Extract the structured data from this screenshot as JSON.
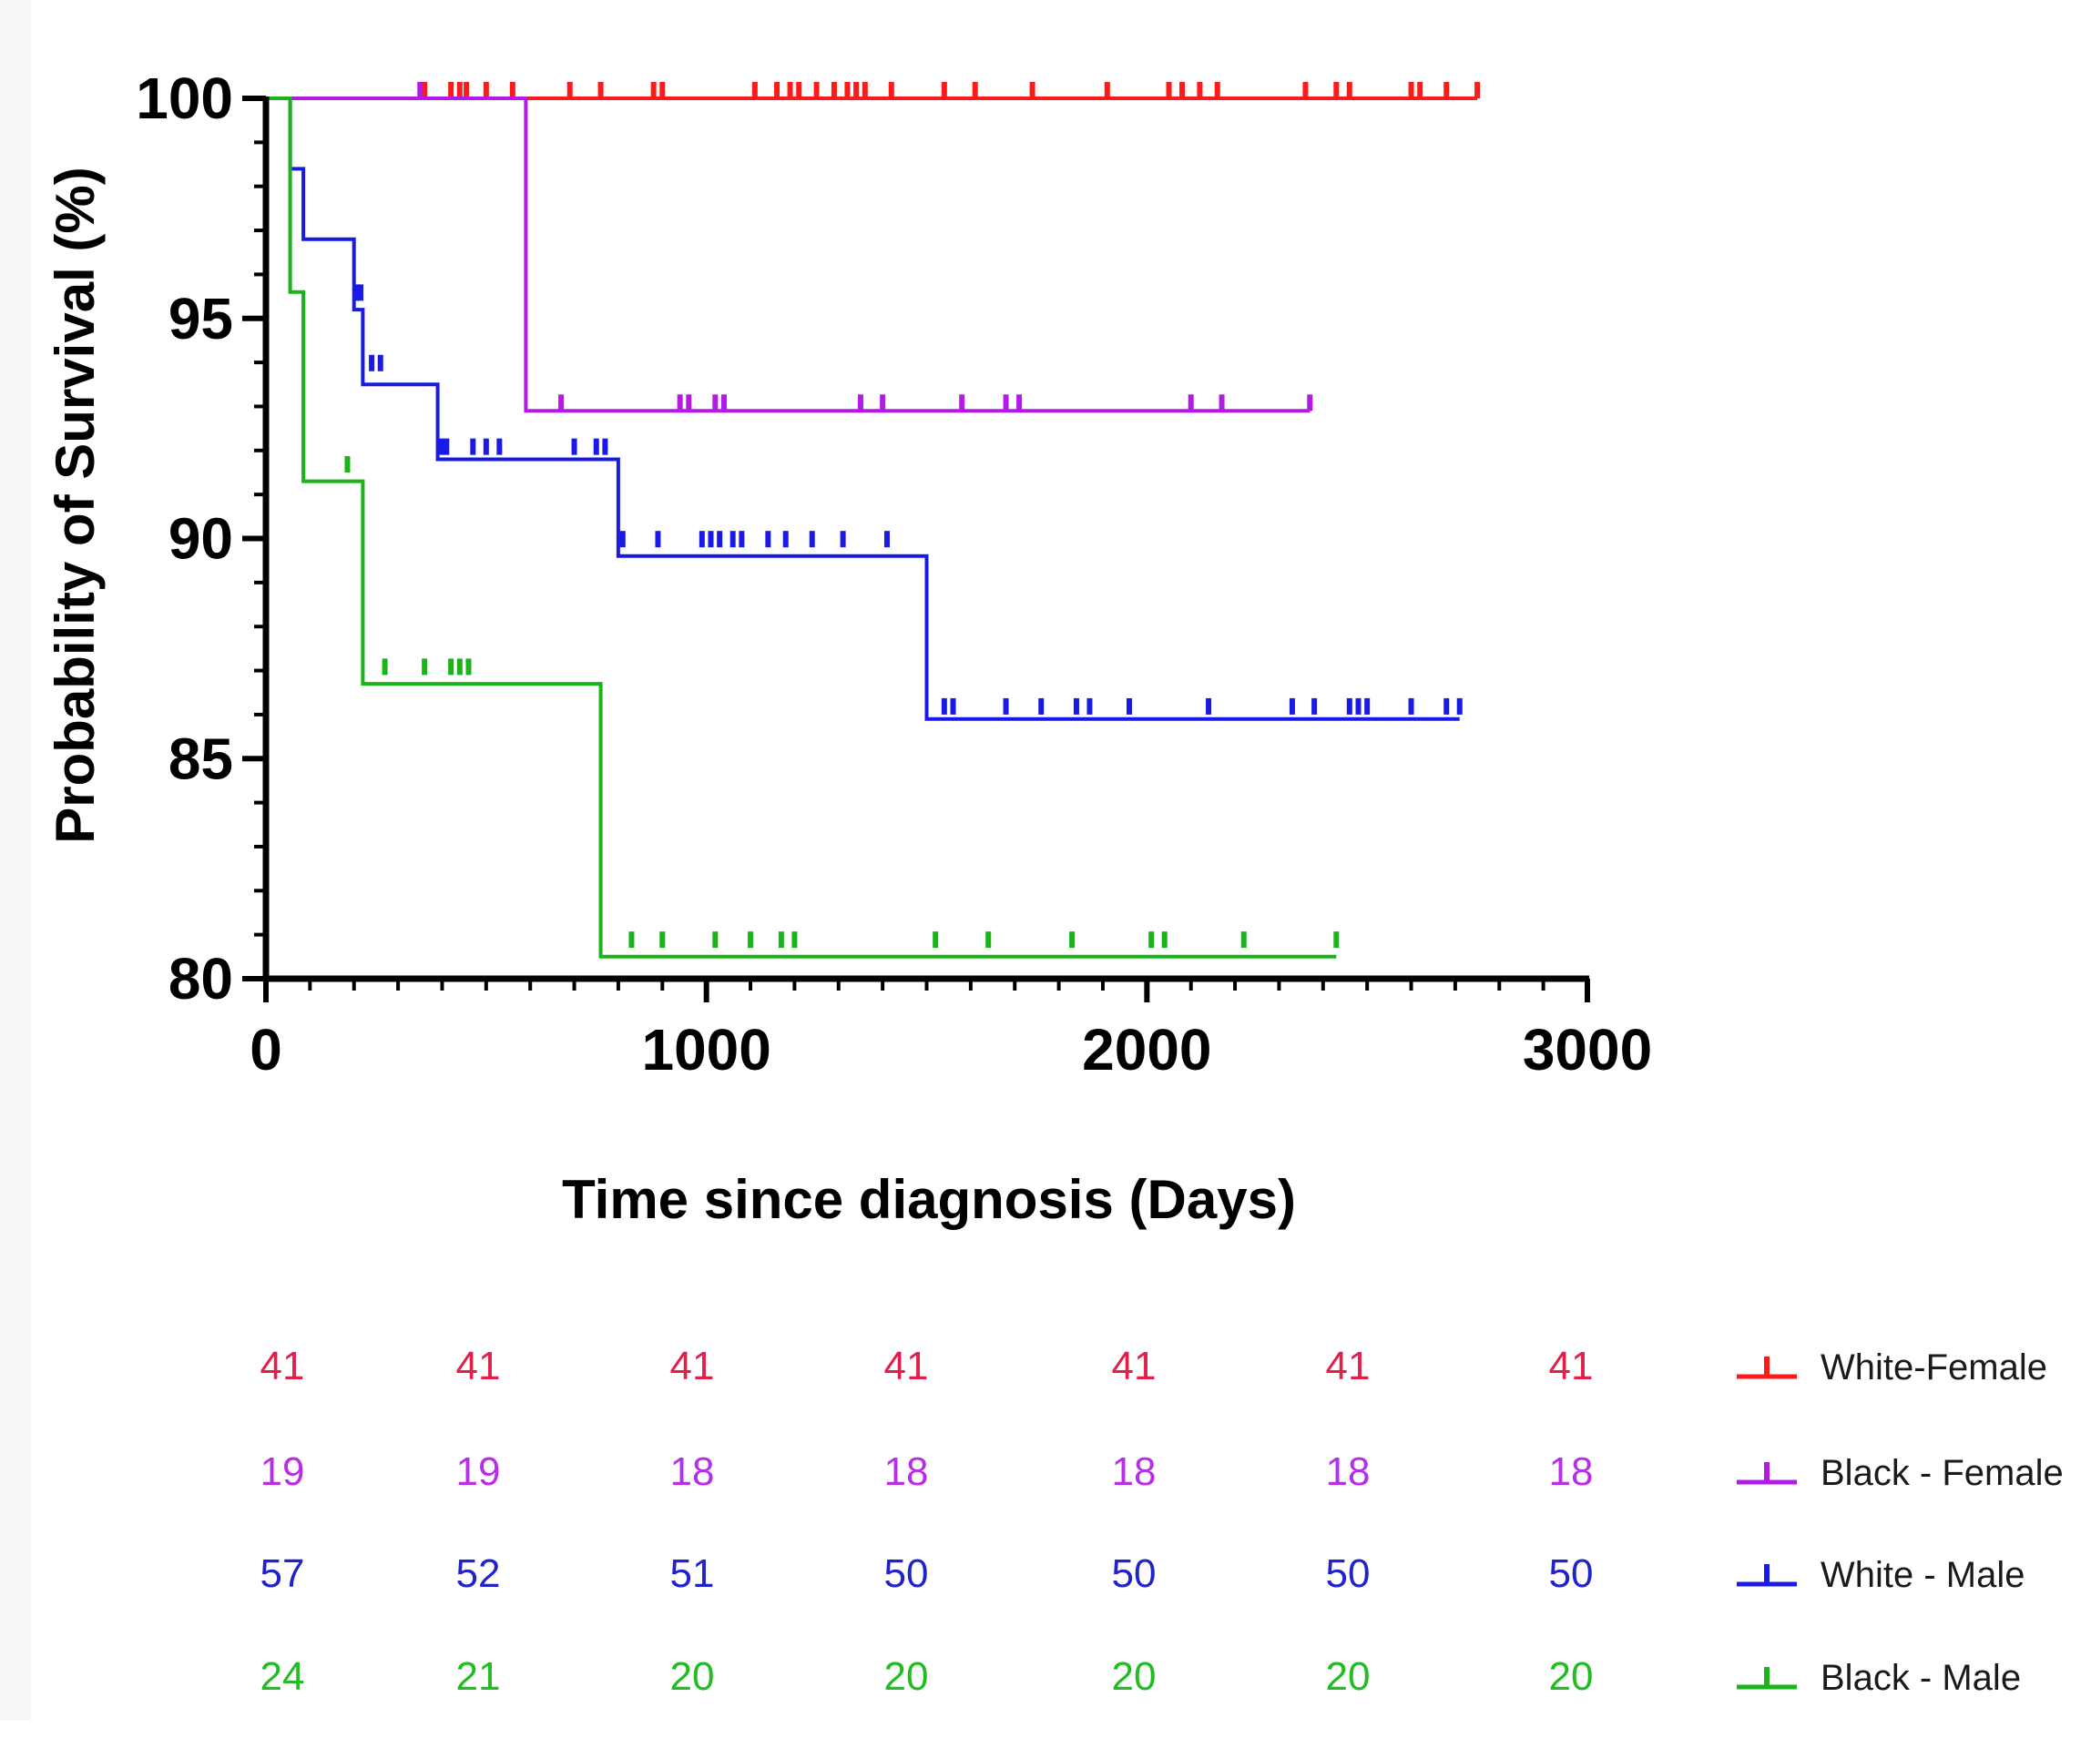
{
  "chart_data": {
    "type": "line",
    "subtype": "kaplan-meier",
    "title": "",
    "xlabel": "Time since diagnosis (Days)",
    "ylabel": "Probability of Survival (%)",
    "xlim": [
      0,
      3000
    ],
    "ylim": [
      80,
      100
    ],
    "xticks": [
      "0",
      "1000",
      "2000",
      "3000"
    ],
    "yticks": [
      "80",
      "85",
      "90",
      "95",
      "100"
    ],
    "grid": false,
    "legend_position": "right, beside risk table",
    "series": [
      {
        "name": "White-Female",
        "color": "#ff1a1a",
        "steps": [
          [
            0,
            100
          ],
          [
            2750,
            100
          ]
        ],
        "censored": [
          [
            360,
            100
          ],
          [
            420,
            100
          ],
          [
            440,
            100
          ],
          [
            455,
            100
          ],
          [
            500,
            100
          ],
          [
            560,
            100
          ],
          [
            690,
            100
          ],
          [
            760,
            100
          ],
          [
            880,
            100
          ],
          [
            900,
            100
          ],
          [
            1110,
            100
          ],
          [
            1160,
            100
          ],
          [
            1190,
            100
          ],
          [
            1210,
            100
          ],
          [
            1250,
            100
          ],
          [
            1290,
            100
          ],
          [
            1320,
            100
          ],
          [
            1340,
            100
          ],
          [
            1360,
            100
          ],
          [
            1420,
            100
          ],
          [
            1540,
            100
          ],
          [
            1610,
            100
          ],
          [
            1740,
            100
          ],
          [
            1910,
            100
          ],
          [
            2050,
            100
          ],
          [
            2080,
            100
          ],
          [
            2120,
            100
          ],
          [
            2160,
            100
          ],
          [
            2360,
            100
          ],
          [
            2430,
            100
          ],
          [
            2460,
            100
          ],
          [
            2600,
            100
          ],
          [
            2620,
            100
          ],
          [
            2680,
            100
          ],
          [
            2750,
            100
          ]
        ]
      },
      {
        "name": "Black - Female",
        "color": "#b31ae6",
        "steps": [
          [
            0,
            100
          ],
          [
            590,
            100
          ],
          [
            590,
            92.9
          ],
          [
            2370,
            92.9
          ]
        ],
        "censored": [
          [
            350,
            100
          ],
          [
            670,
            92.9
          ],
          [
            940,
            92.9
          ],
          [
            960,
            92.9
          ],
          [
            1020,
            92.9
          ],
          [
            1040,
            92.9
          ],
          [
            1350,
            92.9
          ],
          [
            1400,
            92.9
          ],
          [
            1580,
            92.9
          ],
          [
            1680,
            92.9
          ],
          [
            1710,
            92.9
          ],
          [
            2100,
            92.9
          ],
          [
            2170,
            92.9
          ],
          [
            2370,
            92.9
          ]
        ]
      },
      {
        "name": "White - Male",
        "color": "#1a1ae6",
        "steps": [
          [
            0,
            100
          ],
          [
            55,
            100
          ],
          [
            55,
            98.4
          ],
          [
            85,
            98.4
          ],
          [
            85,
            96.8
          ],
          [
            200,
            96.8
          ],
          [
            200,
            95.2
          ],
          [
            220,
            95.2
          ],
          [
            220,
            93.5
          ],
          [
            390,
            93.5
          ],
          [
            390,
            91.8
          ],
          [
            800,
            91.8
          ],
          [
            800,
            89.6
          ],
          [
            1500,
            89.6
          ],
          [
            1500,
            85.9
          ],
          [
            2710,
            85.9
          ]
        ],
        "censored": [
          [
            205,
            95.4
          ],
          [
            215,
            95.4
          ],
          [
            240,
            93.8
          ],
          [
            260,
            93.8
          ],
          [
            400,
            91.9
          ],
          [
            410,
            91.9
          ],
          [
            470,
            91.9
          ],
          [
            500,
            91.9
          ],
          [
            530,
            91.9
          ],
          [
            700,
            91.9
          ],
          [
            750,
            91.9
          ],
          [
            770,
            91.9
          ],
          [
            810,
            89.8
          ],
          [
            890,
            89.8
          ],
          [
            990,
            89.8
          ],
          [
            1010,
            89.8
          ],
          [
            1030,
            89.8
          ],
          [
            1060,
            89.8
          ],
          [
            1080,
            89.8
          ],
          [
            1140,
            89.8
          ],
          [
            1180,
            89.8
          ],
          [
            1240,
            89.8
          ],
          [
            1310,
            89.8
          ],
          [
            1410,
            89.8
          ],
          [
            1540,
            86.0
          ],
          [
            1560,
            86.0
          ],
          [
            1680,
            86.0
          ],
          [
            1760,
            86.0
          ],
          [
            1840,
            86.0
          ],
          [
            1870,
            86.0
          ],
          [
            1960,
            86.0
          ],
          [
            2140,
            86.0
          ],
          [
            2330,
            86.0
          ],
          [
            2380,
            86.0
          ],
          [
            2460,
            86.0
          ],
          [
            2480,
            86.0
          ],
          [
            2500,
            86.0
          ],
          [
            2600,
            86.0
          ],
          [
            2680,
            86.0
          ],
          [
            2710,
            86.0
          ]
        ]
      },
      {
        "name": "Black - Male",
        "color": "#1ab31a",
        "steps": [
          [
            0,
            100
          ],
          [
            55,
            100
          ],
          [
            55,
            95.6
          ],
          [
            85,
            95.6
          ],
          [
            85,
            91.3
          ],
          [
            220,
            91.3
          ],
          [
            220,
            86.7
          ],
          [
            760,
            86.7
          ],
          [
            760,
            80.5
          ],
          [
            2430,
            80.5
          ]
        ],
        "censored": [
          [
            185,
            91.5
          ],
          [
            270,
            86.9
          ],
          [
            360,
            86.9
          ],
          [
            420,
            86.9
          ],
          [
            440,
            86.9
          ],
          [
            460,
            86.9
          ],
          [
            830,
            80.7
          ],
          [
            900,
            80.7
          ],
          [
            1020,
            80.7
          ],
          [
            1100,
            80.7
          ],
          [
            1170,
            80.7
          ],
          [
            1200,
            80.7
          ],
          [
            1520,
            80.7
          ],
          [
            1640,
            80.7
          ],
          [
            1830,
            80.7
          ],
          [
            2010,
            80.7
          ],
          [
            2040,
            80.7
          ],
          [
            2220,
            80.7
          ],
          [
            2430,
            80.7
          ]
        ]
      }
    ],
    "risk_table": {
      "rows": [
        {
          "name": "White-Female",
          "color": "#e0204a",
          "values": [
            "41",
            "41",
            "41",
            "41",
            "41",
            "41",
            "41"
          ]
        },
        {
          "name": "Black - Female",
          "color": "#b82ee6",
          "values": [
            "19",
            "19",
            "18",
            "18",
            "18",
            "18",
            "18"
          ]
        },
        {
          "name": "White - Male",
          "color": "#2222cc",
          "values": [
            "57",
            "52",
            "51",
            "50",
            "50",
            "50",
            "50"
          ]
        },
        {
          "name": "Black - Male",
          "color": "#22bb22",
          "values": [
            "24",
            "21",
            "20",
            "20",
            "20",
            "20",
            "20"
          ]
        }
      ]
    }
  }
}
